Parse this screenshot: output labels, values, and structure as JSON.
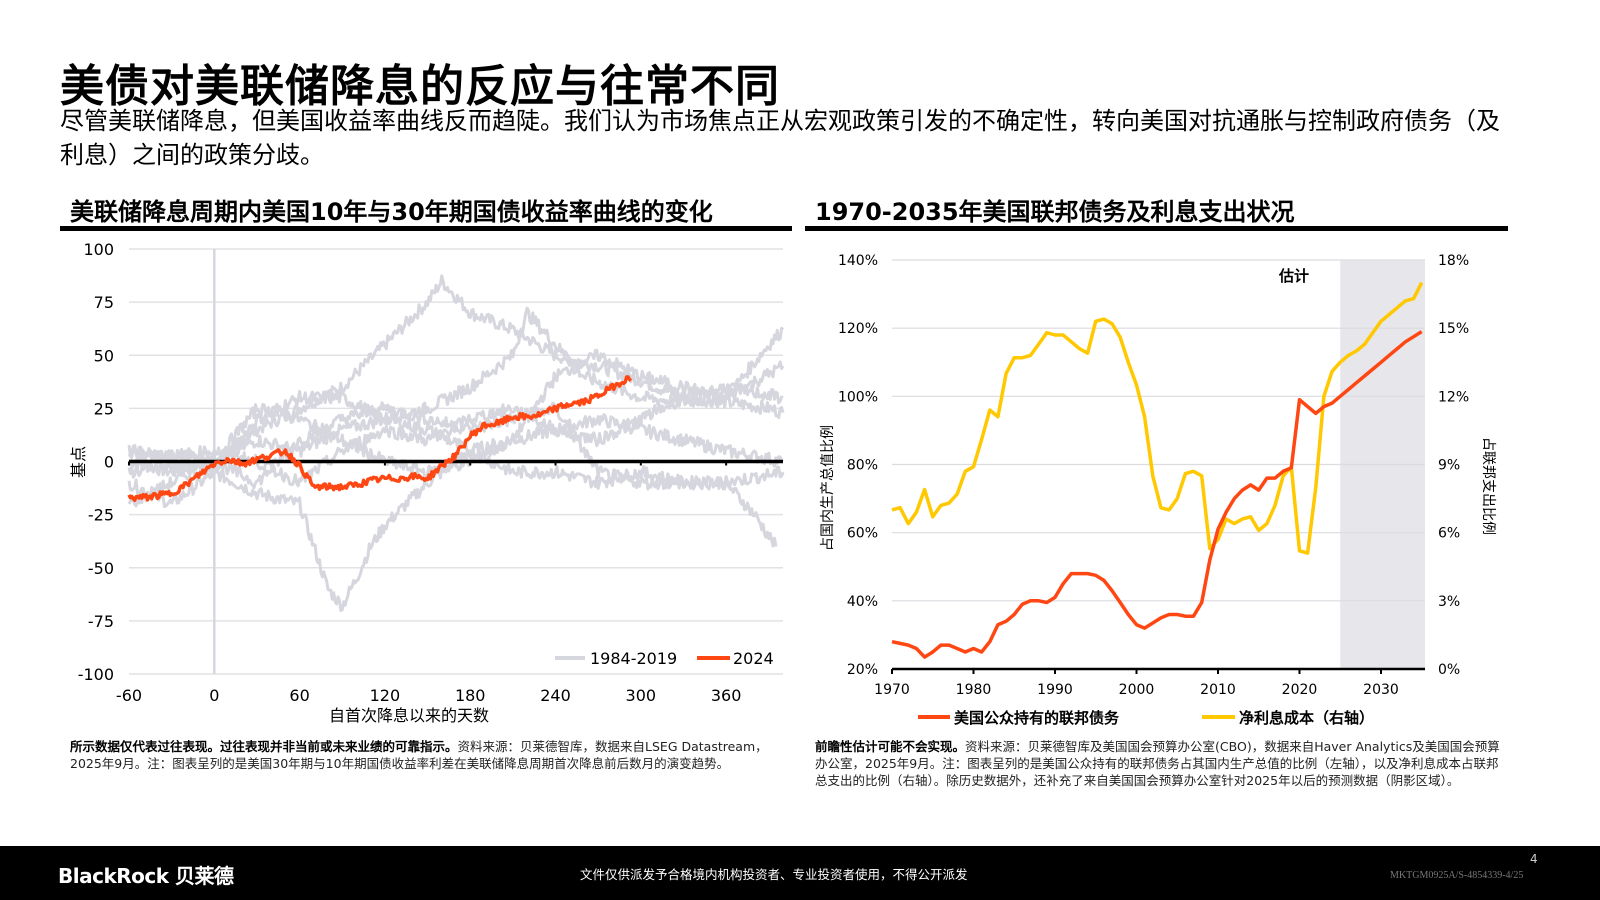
{
  "header": {
    "title": "美债对美联储降息的反应与往常不同",
    "subtitle": "尽管美联储降息，但美国收益率曲线反而趋陡。我们认为市场焦点正从宏观政策引发的不确定性，转向美国对抗通胀与控制政府债务（及利息）之间的政策分歧。"
  },
  "left_panel": {
    "title": "美联储降息周期内美国10年与30年期国债收益率曲线的变化",
    "note_bold": "所示数据仅代表过往表现。过往表现并非当前或未来业绩的可靠指示。",
    "note_text": "资料来源：贝莱德智库，数据来自LSEG Datastream，2025年9月。注：图表呈列的是美国30年期与10年期国债收益率利差在美联储降息周期首次降息前后数月的演变趋势。"
  },
  "right_panel": {
    "title": "1970-2035年美国联邦债务及利息支出状况",
    "note_bold": "前瞻性估计可能不会实现。",
    "note_text": "资料来源：贝莱德智库及美国国会预算办公室(CBO)，数据来自Haver Analytics及美国国会预算办公室，2025年9月。注：图表呈列的是美国公众持有的联邦债务占其国内生产总值的比例（左轴），以及净利息成本占联邦总支出的比例（右轴）。除历史数据外，还补充了来自美国国会预算办公室针对2025年以后的预测数据（阴影区域）。"
  },
  "footer": {
    "logo": "BlackRock 贝莱德",
    "disclaimer": "文件仅供派发予合格境内机构投资者、专业投资者使用，不得公开派发",
    "page_number": "4",
    "doc_code": "MKTGM0925A/S-4854339-4/25"
  },
  "chart_data": [
    {
      "type": "line",
      "xlabel": "自首次降息以来的天数",
      "ylabel": "基点",
      "xlim": [
        -60,
        400
      ],
      "ylim": [
        -100,
        100
      ],
      "xticks": [
        -60,
        0,
        60,
        120,
        180,
        240,
        300,
        360
      ],
      "yticks": [
        100,
        75,
        50,
        25,
        0,
        -25,
        -50,
        -75,
        -100
      ],
      "grid": true,
      "legend": "bottom-right",
      "legend_entries": [
        "1984-2019",
        "2024"
      ],
      "colors": {
        "history": "#d6d6de",
        "current": "#ff4713",
        "zero_line": "#000000"
      },
      "series": [
        {
          "name": "1984-2019",
          "x": [
            -60,
            -30,
            0,
            30,
            60,
            90,
            120,
            150,
            160,
            180,
            210,
            240,
            270,
            300,
            330,
            360,
            390,
            400
          ],
          "y": [
            0,
            -5,
            0,
            15,
            25,
            35,
            55,
            75,
            85,
            70,
            62,
            50,
            45,
            38,
            30,
            28,
            25,
            23
          ]
        },
        {
          "name": "1984-2019",
          "x": [
            -60,
            -30,
            0,
            30,
            60,
            70,
            80,
            90,
            100,
            110,
            120,
            150,
            180,
            210,
            240,
            270,
            300,
            330,
            360,
            400
          ],
          "y": [
            -10,
            -20,
            -5,
            -15,
            -20,
            -40,
            -60,
            -68,
            -55,
            -40,
            -30,
            -10,
            5,
            10,
            15,
            20,
            15,
            10,
            5,
            0
          ]
        },
        {
          "name": "1984-2019",
          "x": [
            -60,
            0,
            30,
            60,
            90,
            120,
            150,
            180,
            210,
            220,
            240,
            260,
            300,
            330,
            360,
            390,
            400
          ],
          "y": [
            5,
            0,
            10,
            5,
            15,
            20,
            25,
            35,
            50,
            70,
            55,
            40,
            30,
            28,
            30,
            55,
            62
          ]
        },
        {
          "name": "1984-2019",
          "x": [
            -60,
            0,
            30,
            60,
            90,
            120,
            150,
            180,
            210,
            240,
            270,
            300,
            330,
            360,
            380,
            395
          ],
          "y": [
            5,
            -5,
            20,
            30,
            30,
            20,
            15,
            5,
            -5,
            -5,
            -10,
            -5,
            -10,
            -10,
            -25,
            -40
          ]
        },
        {
          "name": "1984-2019",
          "x": [
            -60,
            0,
            30,
            60,
            90,
            120,
            150,
            180,
            210,
            240,
            270,
            300,
            330,
            360,
            400
          ],
          "y": [
            -5,
            0,
            25,
            20,
            10,
            0,
            -5,
            0,
            10,
            40,
            50,
            40,
            35,
            30,
            45
          ]
        },
        {
          "name": "1984-2019",
          "x": [
            -60,
            0,
            30,
            60,
            90,
            120,
            150,
            180,
            210,
            240,
            270,
            300,
            330,
            360,
            400
          ],
          "y": [
            -20,
            0,
            -10,
            10,
            20,
            25,
            20,
            15,
            20,
            25,
            -5,
            -10,
            -10,
            -10,
            -5
          ]
        },
        {
          "name": "1984-2019",
          "x": [
            -60,
            0,
            30,
            60,
            90,
            120,
            150,
            180,
            210,
            240,
            270,
            300,
            330,
            360,
            400
          ],
          "y": [
            0,
            5,
            0,
            -10,
            5,
            15,
            10,
            20,
            25,
            15,
            10,
            20,
            30,
            35,
            30
          ]
        },
        {
          "name": "2024",
          "x": [
            -60,
            -50,
            -40,
            -30,
            -20,
            -10,
            0,
            10,
            20,
            30,
            40,
            50,
            60,
            70,
            80,
            90,
            100,
            110,
            120,
            130,
            140,
            150,
            160,
            170,
            180,
            190,
            200,
            210,
            220,
            230,
            240,
            250,
            260,
            270,
            280,
            290,
            293
          ],
          "y": [
            -17,
            -17,
            -16,
            -15,
            -11,
            -6,
            -1,
            1,
            -1,
            1,
            3,
            5,
            -2,
            -12,
            -12,
            -12,
            -11,
            -9,
            -8,
            -8,
            -7,
            -8,
            -2,
            3,
            12,
            17,
            18,
            21,
            21,
            22,
            25,
            27,
            28,
            31,
            35,
            39,
            38
          ]
        }
      ]
    },
    {
      "type": "line",
      "xlabel": "",
      "ylabel_left": "占国内生产总值比例",
      "ylabel_right": "占联邦支出比例",
      "xlim": [
        1970,
        2035
      ],
      "ylim_left": [
        20,
        140
      ],
      "ylim_right": [
        0,
        18
      ],
      "xticks": [
        1970,
        1980,
        1990,
        2000,
        2010,
        2020,
        2030
      ],
      "yticks_left": [
        "140%",
        "120%",
        "100%",
        "80%",
        "60%",
        "40%",
        "20%"
      ],
      "yticks_right": [
        "18%",
        "15%",
        "12%",
        "9%",
        "6%",
        "3%",
        "0%"
      ],
      "grid": true,
      "legend": "bottom",
      "annotation": "估计",
      "estimate_start": 2025,
      "colors": {
        "debt": "#ff4713",
        "interest": "#ffc800",
        "shade": "#e6e6eb"
      },
      "x": [
        1970,
        1971,
        1972,
        1973,
        1974,
        1975,
        1976,
        1977,
        1978,
        1979,
        1980,
        1981,
        1982,
        1983,
        1984,
        1985,
        1986,
        1987,
        1988,
        1989,
        1990,
        1991,
        1992,
        1993,
        1994,
        1995,
        1996,
        1997,
        1998,
        1999,
        2000,
        2001,
        2002,
        2003,
        2004,
        2005,
        2006,
        2007,
        2008,
        2009,
        2010,
        2011,
        2012,
        2013,
        2014,
        2015,
        2016,
        2017,
        2018,
        2019,
        2020,
        2021,
        2022,
        2023,
        2024,
        2025,
        2026,
        2027,
        2028,
        2029,
        2030,
        2031,
        2032,
        2033,
        2034,
        2035
      ],
      "series": [
        {
          "name": "美国公众持有的联邦债务",
          "axis": "left",
          "values": [
            28,
            27.5,
            27,
            26,
            23.5,
            25,
            27,
            27,
            26,
            25,
            26,
            25,
            28,
            33,
            34,
            36,
            39,
            40,
            40,
            39.5,
            41,
            45,
            48,
            48,
            48,
            47.5,
            46,
            43,
            39.5,
            36,
            33,
            32,
            33.5,
            35,
            36,
            36,
            35.5,
            35.5,
            39.5,
            52,
            61,
            66,
            70,
            72.5,
            74,
            72.5,
            76,
            76,
            78,
            79,
            99,
            97,
            95,
            97,
            98,
            100,
            102,
            104,
            106,
            108,
            110,
            112,
            114,
            116,
            117.5,
            119
          ]
        },
        {
          "name": "净利息成本（右轴）",
          "axis": "right",
          "values": [
            7.0,
            7.1,
            6.4,
            6.9,
            7.9,
            6.7,
            7.2,
            7.3,
            7.7,
            8.7,
            8.9,
            10.1,
            11.4,
            11.1,
            13.0,
            13.7,
            13.7,
            13.8,
            14.3,
            14.8,
            14.7,
            14.7,
            14.4,
            14.1,
            13.9,
            15.3,
            15.4,
            15.2,
            14.6,
            13.5,
            12.5,
            11.1,
            8.5,
            7.1,
            7.0,
            7.5,
            8.6,
            8.7,
            8.5,
            5.3,
            5.7,
            6.6,
            6.4,
            6.6,
            6.7,
            6.1,
            6.4,
            7.2,
            8.5,
            8.9,
            5.2,
            5.1,
            8.0,
            12.0,
            13.1,
            13.5,
            13.8,
            14.0,
            14.3,
            14.8,
            15.3,
            15.6,
            15.9,
            16.2,
            16.3,
            17.0
          ]
        }
      ]
    }
  ]
}
